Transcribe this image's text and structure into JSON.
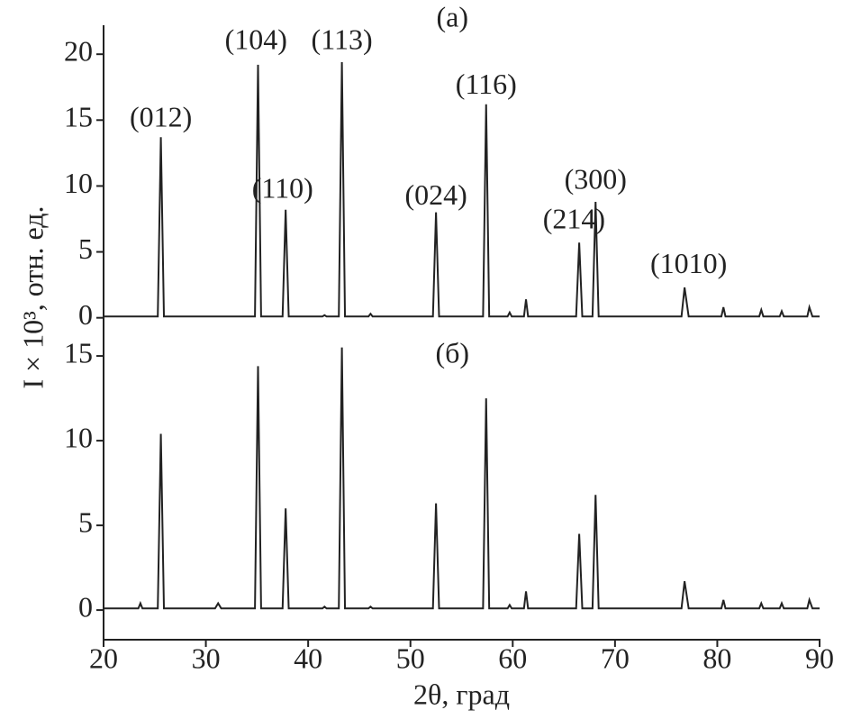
{
  "chart_data": [
    {
      "type": "line",
      "xlim": [
        20,
        90
      ],
      "ylim": [
        -0.5,
        22.2
      ],
      "yticks": [
        0,
        5,
        10,
        15,
        20
      ],
      "ylabel": "I × 10³, отн. ед.",
      "x": [
        20,
        25.3,
        25.6,
        25.9,
        34.8,
        35.1,
        35.4,
        37.5,
        37.8,
        38.1,
        41.4,
        41.6,
        41.8,
        43.0,
        43.3,
        43.6,
        45.9,
        46.1,
        46.3,
        52.2,
        52.5,
        52.8,
        57.1,
        57.4,
        57.7,
        59.5,
        59.7,
        59.9,
        61.1,
        61.3,
        61.5,
        66.2,
        66.5,
        66.8,
        67.8,
        68.1,
        68.4,
        76.5,
        76.8,
        77.2,
        80.4,
        80.6,
        80.8,
        84.1,
        84.3,
        84.5,
        86.1,
        86.3,
        86.5,
        88.8,
        89.0,
        89.3,
        90
      ],
      "series": [
        {
          "color": "#222222",
          "values": [
            0.1,
            0.1,
            13.7,
            0.1,
            0.1,
            19.2,
            0.1,
            0.1,
            8.2,
            0.1,
            0.1,
            0.2,
            0.1,
            0.1,
            19.4,
            0.1,
            0.1,
            0.3,
            0.1,
            0.1,
            8.0,
            0.1,
            0.1,
            16.2,
            0.1,
            0.1,
            0.4,
            0.1,
            0.1,
            1.4,
            0.1,
            0.1,
            5.7,
            0.1,
            0.1,
            8.8,
            0.1,
            0.1,
            2.3,
            0.1,
            0.1,
            0.8,
            0.1,
            0.1,
            0.6,
            0.1,
            0.1,
            0.5,
            0.1,
            0.1,
            0.8,
            0.1,
            0.1
          ]
        }
      ],
      "annotations": [
        {
          "text": "(a)",
          "x": 54.1,
          "y": 22.6
        },
        {
          "text": "(012)",
          "x": 25.6,
          "y": 15.0
        },
        {
          "text": "(104)",
          "x": 34.9,
          "y": 20.9
        },
        {
          "text": "(113)",
          "x": 43.3,
          "y": 20.9
        },
        {
          "text": "(110)",
          "x": 37.5,
          "y": 9.6
        },
        {
          "text": "(024)",
          "x": 52.5,
          "y": 9.1
        },
        {
          "text": "(116)",
          "x": 57.4,
          "y": 17.5
        },
        {
          "text": "(214)",
          "x": 66.0,
          "y": 7.3
        },
        {
          "text": "(300)",
          "x": 68.1,
          "y": 10.3
        },
        {
          "text": "(1010)",
          "x": 77.2,
          "y": 3.9
        }
      ]
    },
    {
      "type": "line",
      "xlim": [
        20,
        90
      ],
      "ylim": [
        -1.75,
        16.6
      ],
      "yticks": [
        0,
        5,
        10,
        15
      ],
      "xticks": [
        20,
        30,
        40,
        50,
        60,
        70,
        80,
        90
      ],
      "xlabel": "2θ, град",
      "x": [
        20,
        23.4,
        23.6,
        23.8,
        25.3,
        25.6,
        25.9,
        30.9,
        31.2,
        31.5,
        34.8,
        35.1,
        35.4,
        37.5,
        37.8,
        38.1,
        41.4,
        41.6,
        41.8,
        43.0,
        43.3,
        43.6,
        45.9,
        46.1,
        46.3,
        52.2,
        52.5,
        52.8,
        57.1,
        57.4,
        57.7,
        59.5,
        59.7,
        59.9,
        61.1,
        61.3,
        61.5,
        66.2,
        66.5,
        66.8,
        67.8,
        68.1,
        68.4,
        76.5,
        76.8,
        77.2,
        80.4,
        80.6,
        80.8,
        84.1,
        84.3,
        84.5,
        86.1,
        86.3,
        86.5,
        88.8,
        89.0,
        89.3,
        90
      ],
      "series": [
        {
          "color": "#222222",
          "values": [
            0.1,
            0.1,
            0.4,
            0.1,
            0.1,
            10.4,
            0.1,
            0.1,
            0.4,
            0.1,
            0.1,
            14.4,
            0.1,
            0.1,
            6.0,
            0.1,
            0.1,
            0.2,
            0.1,
            0.1,
            15.5,
            0.1,
            0.1,
            0.2,
            0.1,
            0.1,
            6.3,
            0.1,
            0.1,
            12.5,
            0.1,
            0.1,
            0.3,
            0.1,
            0.1,
            1.1,
            0.1,
            0.1,
            4.5,
            0.1,
            0.1,
            6.8,
            0.1,
            0.1,
            1.7,
            0.1,
            0.1,
            0.6,
            0.1,
            0.1,
            0.4,
            0.1,
            0.1,
            0.4,
            0.1,
            0.1,
            0.6,
            0.1,
            0.1
          ]
        }
      ],
      "annotations": [
        {
          "text": "(б)",
          "x": 54.1,
          "y": 15.0
        }
      ]
    }
  ]
}
